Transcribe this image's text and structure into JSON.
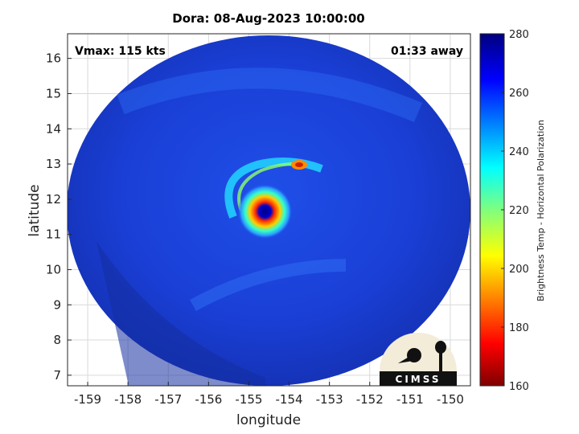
{
  "chart_data": {
    "type": "heatmap",
    "title": "Dora: 08-Aug-2023 10:00:00",
    "xlabel": "longitude",
    "ylabel": "latitude",
    "xlim": [
      -159.5,
      -149.5
    ],
    "ylim": [
      6.7,
      16.7
    ],
    "x_ticks": [
      -159,
      -158,
      -157,
      -156,
      -155,
      -154,
      -153,
      -152,
      -151,
      -150
    ],
    "y_ticks": [
      7,
      8,
      9,
      10,
      11,
      12,
      13,
      14,
      15,
      16
    ],
    "x_tick_labels": [
      "-159",
      "-158",
      "-157",
      "-156",
      "-155",
      "-154",
      "-153",
      "-152",
      "-151",
      "-150"
    ],
    "y_tick_labels": [
      "7",
      "8",
      "9",
      "10",
      "11",
      "12",
      "13",
      "14",
      "15",
      "16"
    ],
    "grid": true,
    "colorbar": {
      "label": "Brightness Temp - Horizontal Polarization",
      "range": [
        160,
        280
      ],
      "ticks": [
        160,
        180,
        200,
        220,
        240,
        260,
        280
      ],
      "tick_labels": [
        "160",
        "180",
        "200",
        "220",
        "240",
        "260",
        "280"
      ],
      "colormap": "jet"
    },
    "annotations": {
      "vmax": "Vmax: 115 kts",
      "time_offset": "01:33 away"
    },
    "storm_center": {
      "lon": -154.6,
      "lat": 11.65
    },
    "logo_text": "CIMSS"
  }
}
